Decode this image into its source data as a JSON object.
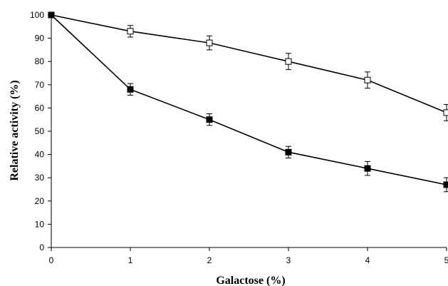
{
  "chart_data": {
    "type": "line",
    "title": "",
    "xlabel": "Galactose (%)",
    "ylabel": "Relative activity (%)",
    "xlim": [
      0,
      5
    ],
    "ylim": [
      0,
      100
    ],
    "x_ticks": [
      0,
      1,
      2,
      3,
      4,
      5
    ],
    "y_ticks": [
      0,
      10,
      20,
      30,
      40,
      50,
      60,
      70,
      80,
      90,
      100
    ],
    "grid": false,
    "legend": "none",
    "series": [
      {
        "marker": "open-square",
        "x": [
          0,
          1,
          2,
          3,
          4,
          5
        ],
        "values": [
          100,
          93,
          88,
          80,
          72,
          58
        ],
        "error": [
          0,
          2.5,
          3,
          3.5,
          3.5,
          3.5
        ]
      },
      {
        "marker": "filled-square",
        "x": [
          0,
          1,
          2,
          3,
          4,
          5
        ],
        "values": [
          100,
          68,
          55,
          41,
          34,
          27
        ],
        "error": [
          0,
          2.5,
          2.5,
          2.5,
          3,
          3
        ]
      }
    ],
    "colors": {
      "line": "#000000",
      "axis": "#000000",
      "open_marker_fill": "#ffffff",
      "filled_marker_fill": "#000000"
    }
  }
}
